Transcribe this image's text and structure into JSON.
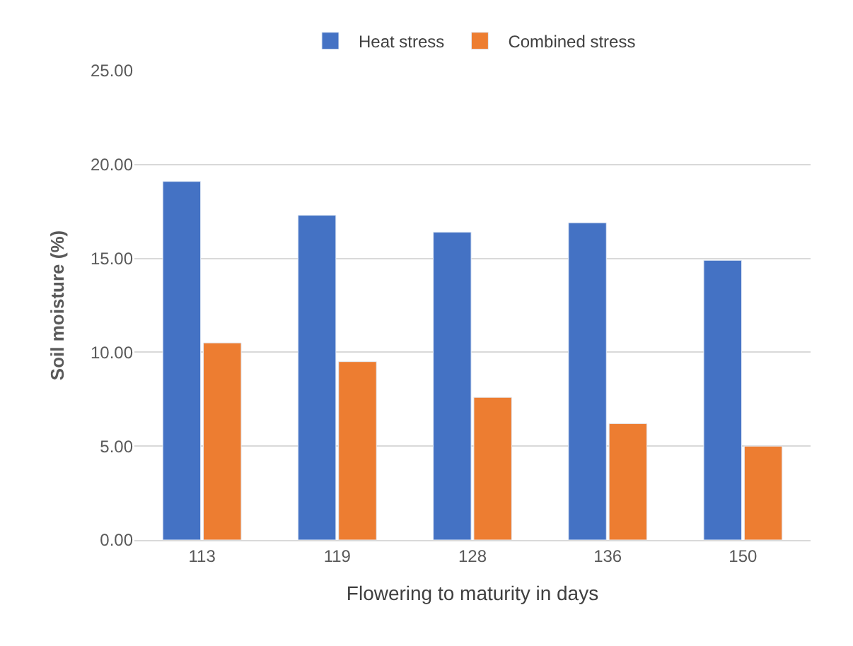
{
  "chart_data": {
    "type": "bar",
    "xlabel": "Flowering to maturity in days",
    "ylabel": "Soil moisture (%)",
    "categories": [
      "113",
      "119",
      "128",
      "136",
      "150"
    ],
    "series": [
      {
        "name": "Heat stress",
        "color": "#4472c4",
        "values": [
          19.1,
          17.3,
          16.4,
          16.9,
          14.9
        ]
      },
      {
        "name": "Combined stress",
        "color": "#ed7d31",
        "values": [
          10.5,
          9.5,
          7.6,
          6.2,
          5.0
        ]
      }
    ],
    "ylim": [
      0,
      25
    ],
    "yticks": [
      {
        "value": 0,
        "label": "0.00"
      },
      {
        "value": 5,
        "label": "5.00"
      },
      {
        "value": 10,
        "label": "10.00"
      },
      {
        "value": 15,
        "label": "15.00"
      },
      {
        "value": 20,
        "label": "20.00"
      },
      {
        "value": 25,
        "label": "25.00"
      }
    ],
    "grid": "y",
    "legend": "top"
  }
}
